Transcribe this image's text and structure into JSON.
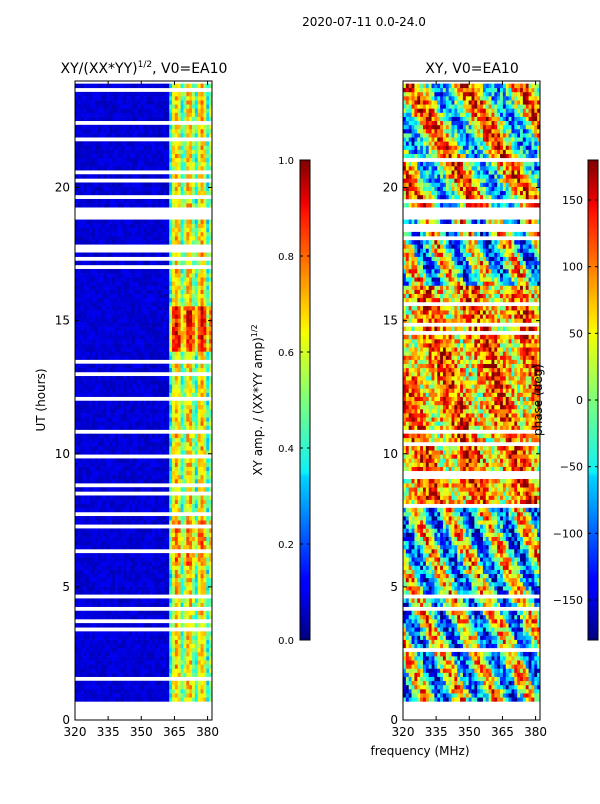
{
  "figure": {
    "suptitle": "2020-07-11 0.0-24.0",
    "shared_xlabel": "frequency (MHz)"
  },
  "colors": {
    "background": "#ffffff",
    "no_data": "#ffffff",
    "axis": "#000000",
    "colormap": "jet"
  },
  "chart_data": [
    {
      "type": "heatmap",
      "title": "XY/(XX*YY)",
      "title_superscript": "1/2",
      "title_suffix": ", V0=EA10",
      "xlabel": "",
      "ylabel": "UT (hours)",
      "xlim": [
        320,
        382
      ],
      "ylim": [
        0,
        24
      ],
      "xticks": [
        "320",
        "335",
        "350",
        "365",
        "380"
      ],
      "yticks": [
        "0",
        "5",
        "10",
        "15",
        "20"
      ],
      "colorbar": {
        "label": "XY amp. / (XX*YY amp)",
        "label_superscript": "1/2",
        "range": [
          0.0,
          1.0
        ],
        "ticks": [
          "0.0",
          "0.2",
          "0.4",
          "0.6",
          "0.8",
          "1.0"
        ]
      },
      "data_time_range_hours": [
        0.7,
        23.9
      ],
      "gap_bands_hours": [
        [
          18.8,
          19.3
        ],
        [
          10.7,
          10.9
        ],
        [
          4.6,
          4.75
        ]
      ],
      "features": "Near-zero amplitude from 320 to ~363 MHz; bright cyan-yellow-orange vertical stripes between ~363 and 380 MHz"
    },
    {
      "type": "heatmap",
      "title": "XY, V0=EA10",
      "xlabel": "",
      "ylabel": "",
      "xlim": [
        320,
        382
      ],
      "ylim": [
        0,
        24
      ],
      "xticks": [
        "320",
        "335",
        "350",
        "365",
        "380"
      ],
      "yticks": [
        "0",
        "5",
        "10",
        "15",
        "20"
      ],
      "colorbar": {
        "label": "phase (deg)",
        "range": [
          -180,
          180
        ],
        "ticks": [
          "-150",
          "-100",
          "-50",
          "0",
          "50",
          "100",
          "150"
        ]
      },
      "data_time_range_hours": [
        0.7,
        23.9
      ],
      "gap_bands_hours": [
        [
          18.8,
          19.3
        ],
        [
          10.7,
          10.9
        ],
        [
          4.6,
          4.75
        ]
      ],
      "features": "Noisy phase; predominantly warm (+50 to +150 deg) from 8 to 16 h, mixed cyan/yellow elsewhere"
    }
  ]
}
